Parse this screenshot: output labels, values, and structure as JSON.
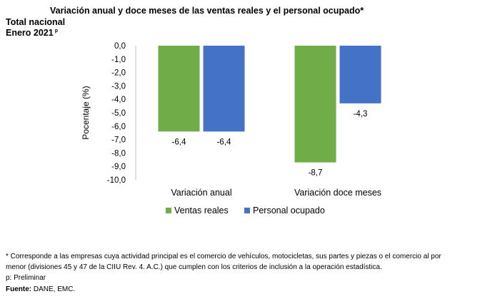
{
  "title": "Variación anual y doce meses de las ventas reales y el personal ocupado*",
  "subtitle_line1": "Total nacional",
  "subtitle_line2": "Enero 2021",
  "subtitle_sup": "p",
  "chart_data": {
    "type": "bar",
    "categories": [
      "Variación anual",
      "Variación doce meses"
    ],
    "series": [
      {
        "name": "Ventas reales",
        "values": [
          -6.4,
          -8.7
        ],
        "labels": [
          "-6,4",
          "-8,7"
        ],
        "color": "#70ad47"
      },
      {
        "name": "Personal ocupado",
        "values": [
          -6.4,
          -4.3
        ],
        "labels": [
          "-6,4",
          "-4,3"
        ],
        "color": "#4472c4"
      }
    ],
    "ylabel": "Pocentaje (%)",
    "ylim": [
      -10,
      0
    ],
    "y_ticks": [
      0,
      -1,
      -2,
      -3,
      -4,
      -5,
      -6,
      -7,
      -8,
      -9,
      -10
    ],
    "y_tick_labels": [
      "0,0",
      "-1,0",
      "-2,0",
      "-3,0",
      "-4,0",
      "-5,0",
      "-6,0",
      "-7,0",
      "-8,0",
      "-9,0",
      "-10,0"
    ],
    "grid": false,
    "legend_position": "bottom"
  },
  "footnote_line1": "* Corresponde a las empresas cuya actividad principal es el comercio de vehículos, motocicletas, sus partes y piezas o el comercio al por",
  "footnote_line2": "menor (divisiones 45 y 47 de la CIIU Rev. 4. A.C.) que cumplen con los criterios de inclusión a la operación estadística.",
  "footnote_line3": "p: Preliminar",
  "source_label": "Fuente:",
  "source_text": " DANE, EMC."
}
